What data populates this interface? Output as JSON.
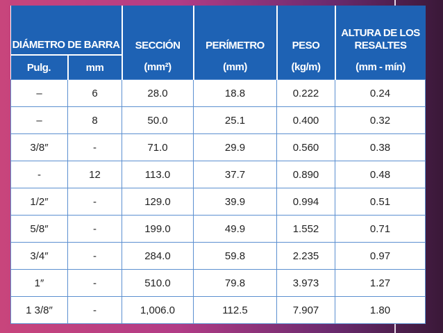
{
  "table": {
    "group_header": "DIÁMETRO DE BARRA",
    "sub_headers": [
      "Pulg.",
      "mm"
    ],
    "columns": [
      {
        "title": "SECCIÓN",
        "unit": "(mm²)"
      },
      {
        "title": "PERÍMETRO",
        "unit": "(mm)"
      },
      {
        "title": "PESO",
        "unit": "(kg/m)"
      },
      {
        "title": "ALTURA DE LOS RESALTES",
        "unit": "(mm - mín)"
      }
    ],
    "rows": [
      [
        "–",
        "6",
        "28.0",
        "18.8",
        "0.222",
        "0.24"
      ],
      [
        "–",
        "8",
        "50.0",
        "25.1",
        "0.400",
        "0.32"
      ],
      [
        "3/8″",
        "-",
        "71.0",
        "29.9",
        "0.560",
        "0.38"
      ],
      [
        "-",
        "12",
        "113.0",
        "37.7",
        "0.890",
        "0.48"
      ],
      [
        "1/2″",
        "-",
        "129.0",
        "39.9",
        "0.994",
        "0.51"
      ],
      [
        "5/8″",
        "-",
        "199.0",
        "49.9",
        "1.552",
        "0.71"
      ],
      [
        "3/4″",
        "-",
        "284.0",
        "59.8",
        "2.235",
        "0.97"
      ],
      [
        "1″",
        "-",
        "510.0",
        "79.8",
        "3.973",
        "1.27"
      ],
      [
        "1 3/8″",
        "-",
        "1,006.0",
        "112.5",
        "7.907",
        "1.80"
      ]
    ]
  }
}
